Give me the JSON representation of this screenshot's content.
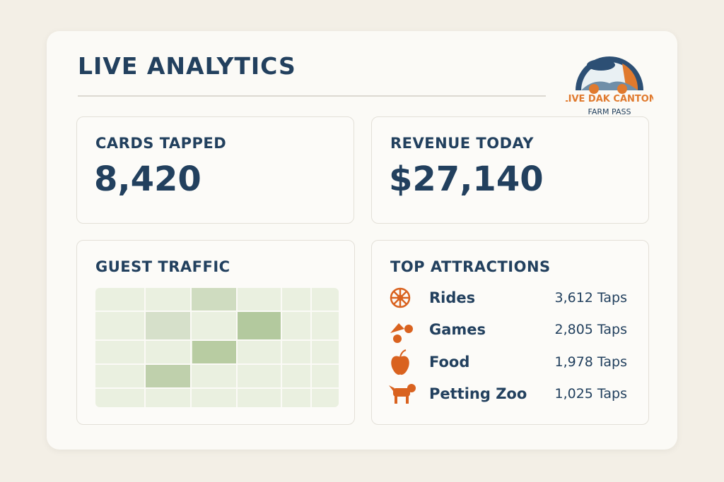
{
  "header": {
    "title": "LIVE ANALYTICS"
  },
  "logo": {
    "name": "LIVE DAK CANTON",
    "subtitle": "FARM PASS"
  },
  "cards_tapped": {
    "label": "CARDS TAPPED",
    "value": "8,420"
  },
  "revenue_today": {
    "label": "REVENUE TODAY",
    "value": "$27,140"
  },
  "guest_traffic": {
    "title": "GUEST TRAFFIC"
  },
  "top_attractions": {
    "title": "TOP ATTRACTIONS",
    "items": [
      {
        "name": "Rides",
        "count": "3,612 Taps"
      },
      {
        "name": "Games",
        "count": "2,805 Taps"
      },
      {
        "name": "Food",
        "count": "1,978 Taps"
      },
      {
        "name": "Petting Zoo",
        "count": "1,025 Taps"
      }
    ]
  }
}
